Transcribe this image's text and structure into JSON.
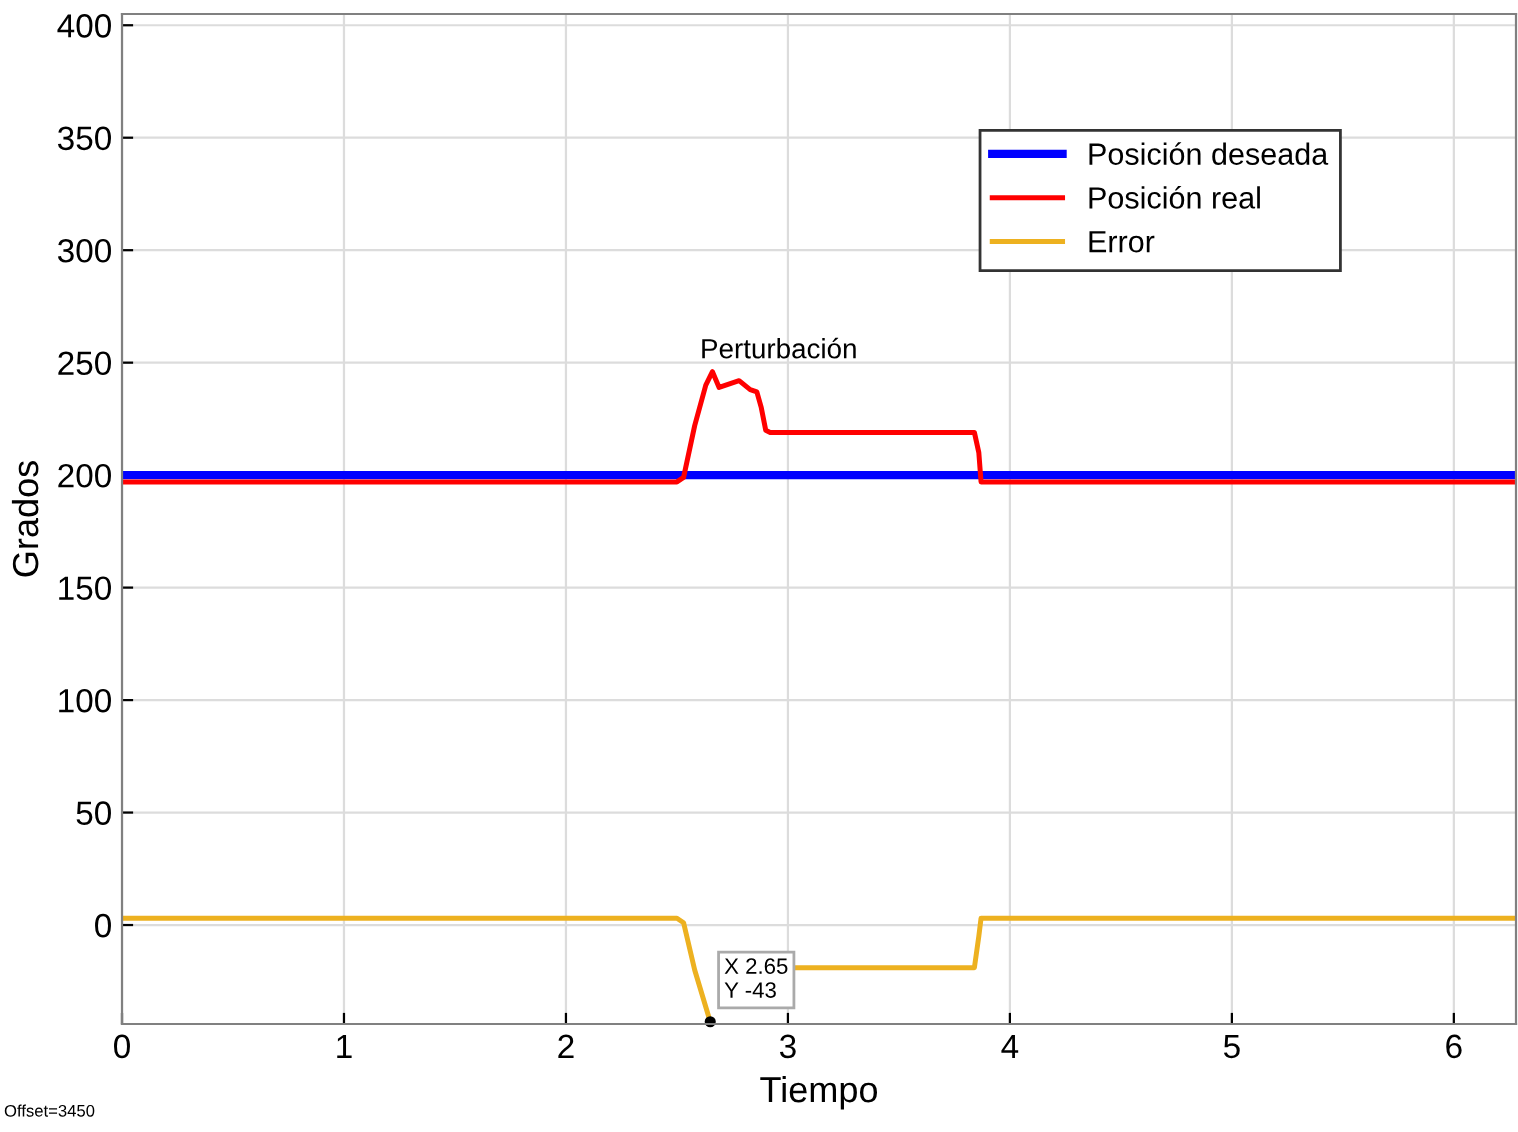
{
  "chart_data": {
    "type": "line",
    "xlabel": "Tiempo",
    "ylabel": "Grados",
    "xlim": [
      0,
      6.28
    ],
    "ylim": [
      -44,
      405
    ],
    "xticks": [
      0,
      1,
      2,
      3,
      4,
      5,
      6
    ],
    "yticks": [
      0,
      50,
      100,
      150,
      200,
      250,
      300,
      350,
      400
    ],
    "grid": true,
    "legend": "top right",
    "series": [
      {
        "name": "Posición deseada",
        "color": "#0000ff",
        "x": [
          0,
          6.28
        ],
        "values": [
          200,
          200
        ]
      },
      {
        "name": "Posición real",
        "color": "#ff0000",
        "x": [
          0,
          2.5,
          2.53,
          2.58,
          2.63,
          2.66,
          2.69,
          2.72,
          2.78,
          2.83,
          2.86,
          2.88,
          2.9,
          2.92,
          3.84,
          3.86,
          3.87,
          6.28
        ],
        "values": [
          197,
          197,
          199,
          222,
          240,
          246,
          239,
          240,
          242,
          238,
          237,
          230,
          220,
          219,
          219,
          210,
          197,
          197
        ]
      },
      {
        "name": "Error",
        "color": "#edb120",
        "x": [
          0,
          2.5,
          2.53,
          2.58,
          2.65,
          2.8,
          3.03,
          3.84,
          3.86,
          3.87,
          6.28
        ],
        "values": [
          3,
          3,
          1,
          -20,
          -43,
          null,
          -19,
          -19,
          -5,
          3,
          3
        ]
      }
    ],
    "annotations": [
      "Perturbación",
      {
        "text": "X 2.65\nY -43",
        "x": 2.65,
        "y": -43
      },
      "Offset=3450"
    ]
  }
}
